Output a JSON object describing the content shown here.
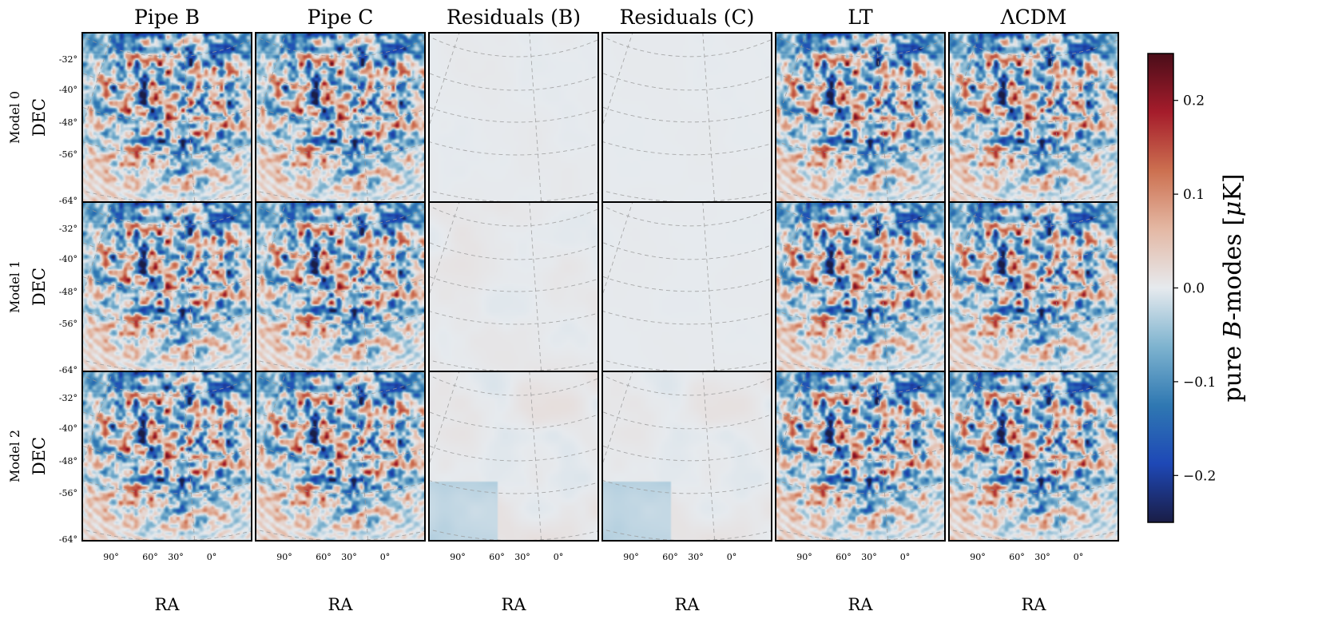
{
  "chart_data": {
    "type": "heatmap",
    "columns": [
      "Pipe B",
      "Pipe C",
      "Residuals (B)",
      "Residuals (C)",
      "LT",
      "ΛCDM"
    ],
    "rows": [
      "Model 0",
      "Model 1",
      "Model 2"
    ],
    "xlabel": "RA",
    "ylabel": "DEC",
    "ra_ticks": [
      "90°",
      "60°",
      "30°",
      "0°"
    ],
    "dec_ticks": [
      "-32°",
      "-40°",
      "-48°",
      "-56°",
      "-64°"
    ],
    "colorbar": {
      "label": "pure B-modes [μK]",
      "label_parts": [
        "pure ",
        "B",
        "-modes [",
        "μ",
        "K]"
      ],
      "min": -0.25,
      "max": 0.25,
      "ticks": [
        0.2,
        0.1,
        0.0,
        -0.1,
        -0.2
      ],
      "tick_labels": [
        "0.2",
        "0.1",
        "0.0",
        "−0.1",
        "−0.2"
      ],
      "colormap": [
        "#1a1d46",
        "#1e48b6",
        "#2f78b2",
        "#7eb3cf",
        "#e6eaee",
        "#e4b8a4",
        "#cc7050",
        "#a51c2b",
        "#4a0d19"
      ]
    },
    "panel_intensity": [
      [
        1.0,
        1.0,
        0.06,
        0.03,
        1.0,
        1.0
      ],
      [
        1.0,
        1.0,
        0.14,
        0.03,
        1.0,
        1.0
      ],
      [
        1.0,
        1.0,
        0.22,
        0.18,
        1.0,
        1.0
      ]
    ]
  },
  "colors": {
    "background": "#ffffff",
    "frame": "#000000",
    "grid": "#999999",
    "outside_footprint": "#d7dde4"
  }
}
